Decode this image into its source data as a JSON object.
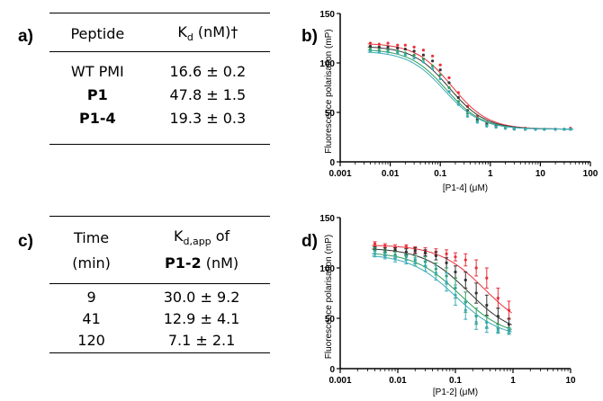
{
  "panels": {
    "a": "a)",
    "b": "b)",
    "c": "c)",
    "d": "d)"
  },
  "table_a": {
    "header": {
      "peptide": "Peptide",
      "kd_main": "K",
      "kd_sub": "d",
      "kd_tail": " (nM)†"
    },
    "rows": [
      {
        "peptide": "WT PMI",
        "kd": "16.6 ± 0.2",
        "bold": false
      },
      {
        "peptide": "P1",
        "kd": "47.8 ± 1.5",
        "bold": true
      },
      {
        "peptide": "P1-4",
        "kd": "19.3 ± 0.3",
        "bold": true
      }
    ]
  },
  "table_c": {
    "header": {
      "time_line1": "Time",
      "time_line2": "(min)",
      "kd_main": "K",
      "kd_sub": "d,app",
      "kd_of": " of",
      "kd_peptide": "P1-2",
      "kd_unit": " (nM)"
    },
    "rows": [
      {
        "time": "9",
        "kd": "30.0 ± 9.2"
      },
      {
        "time": "41",
        "kd": "12.9 ± 4.1"
      },
      {
        "time": "120",
        "kd": "7.1 ± 2.1"
      }
    ]
  },
  "colors": {
    "red": "#e8303a",
    "black": "#333333",
    "green": "#2e9e5c",
    "cyan": "#3aaab8"
  },
  "chart_data": [
    {
      "type": "scatter",
      "panel": "b",
      "xlabel": "[P1-4] (μM)",
      "ylabel": "Fluorescence polarisation (mP)",
      "xscale": "log",
      "xlim": [
        0.001,
        100
      ],
      "ylim": [
        0,
        150
      ],
      "xticks": [
        0.001,
        0.01,
        0.1,
        1,
        10,
        100
      ],
      "xtick_labels": [
        "0.001",
        "0.01",
        "0.1",
        "1",
        "10",
        "100"
      ],
      "yticks": [
        0,
        50,
        100,
        150
      ],
      "ytick_labels": [
        "0",
        "50",
        "100",
        "150"
      ],
      "x": [
        0.004,
        0.006,
        0.009,
        0.014,
        0.02,
        0.03,
        0.046,
        0.07,
        0.1,
        0.15,
        0.23,
        0.35,
        0.55,
        0.85,
        1.3,
        2,
        3,
        5,
        8,
        12,
        20,
        30,
        40
      ],
      "series": [
        {
          "color": "red",
          "top": 120,
          "bottom": 33,
          "ec50": 0.17,
          "hill": 1.2,
          "values": [
            120,
            119,
            120,
            118,
            118,
            116,
            113,
            107,
            98,
            85,
            70,
            56,
            46,
            40,
            37,
            35,
            34,
            34,
            33,
            33,
            33,
            33,
            34
          ]
        },
        {
          "color": "black",
          "top": 117,
          "bottom": 33,
          "ec50": 0.15,
          "hill": 1.2,
          "values": [
            117,
            116,
            116,
            115,
            114,
            112,
            108,
            102,
            93,
            80,
            65,
            52,
            43,
            38,
            36,
            34,
            34,
            33,
            33,
            33,
            33,
            33,
            33
          ]
        },
        {
          "color": "green",
          "top": 114,
          "bottom": 33,
          "ec50": 0.13,
          "hill": 1.2,
          "values": [
            114,
            113,
            113,
            112,
            110,
            108,
            104,
            97,
            88,
            75,
            61,
            49,
            41,
            37,
            35,
            34,
            33,
            33,
            33,
            33,
            33,
            33,
            33
          ]
        },
        {
          "color": "cyan",
          "top": 112,
          "bottom": 33,
          "ec50": 0.12,
          "hill": 1.2,
          "values": [
            112,
            111,
            111,
            110,
            108,
            105,
            101,
            94,
            84,
            71,
            58,
            46,
            40,
            36,
            35,
            34,
            33,
            33,
            33,
            33,
            33,
            33,
            33
          ]
        }
      ]
    },
    {
      "type": "scatter",
      "panel": "d",
      "xlabel": "[P1-2] (μM)",
      "ylabel": "Fluorescence polarisation (mP)",
      "xscale": "log",
      "xlim": [
        0.001,
        10
      ],
      "ylim": [
        0,
        150
      ],
      "xticks": [
        0.001,
        0.01,
        0.1,
        1,
        10
      ],
      "xtick_labels": [
        "0.001",
        "0.01",
        "0.1",
        "1",
        "10"
      ],
      "yticks": [
        0,
        50,
        100,
        150
      ],
      "ytick_labels": [
        "0",
        "50",
        "100",
        "150"
      ],
      "x": [
        0.004,
        0.006,
        0.009,
        0.014,
        0.02,
        0.03,
        0.046,
        0.07,
        0.1,
        0.15,
        0.23,
        0.35,
        0.55,
        0.85
      ],
      "series": [
        {
          "color": "red",
          "top": 123,
          "bottom": 35,
          "ec50": 0.32,
          "hill": 1.1,
          "values": [
            124,
            122,
            120,
            121,
            118,
            117,
            116,
            114,
            111,
            108,
            100,
            90,
            70,
            58
          ],
          "errors": [
            2,
            2,
            3,
            2,
            3,
            3,
            3,
            4,
            4,
            6,
            8,
            10,
            10,
            9
          ]
        },
        {
          "color": "black",
          "top": 120,
          "bottom": 32,
          "ec50": 0.17,
          "hill": 1.1,
          "values": [
            119,
            118,
            118,
            116,
            117,
            115,
            112,
            105,
            96,
            88,
            75,
            63,
            52,
            44
          ],
          "errors": [
            2,
            2,
            2,
            3,
            3,
            3,
            4,
            5,
            6,
            8,
            10,
            10,
            8,
            6
          ]
        },
        {
          "color": "green",
          "top": 116,
          "bottom": 31,
          "ec50": 0.12,
          "hill": 1.1,
          "values": [
            117,
            115,
            113,
            111,
            108,
            106,
            99,
            92,
            80,
            66,
            52,
            46,
            40,
            38
          ],
          "errors": [
            3,
            3,
            3,
            3,
            4,
            5,
            6,
            8,
            10,
            10,
            8,
            6,
            4,
            3
          ]
        },
        {
          "color": "cyan",
          "top": 114,
          "bottom": 30,
          "ec50": 0.1,
          "hill": 1.1,
          "values": [
            114,
            112,
            109,
            108,
            106,
            102,
            95,
            86,
            73,
            58,
            46,
            41,
            38,
            37
          ],
          "errors": [
            3,
            3,
            3,
            4,
            4,
            5,
            7,
            9,
            10,
            9,
            7,
            5,
            3,
            3
          ]
        }
      ]
    }
  ]
}
